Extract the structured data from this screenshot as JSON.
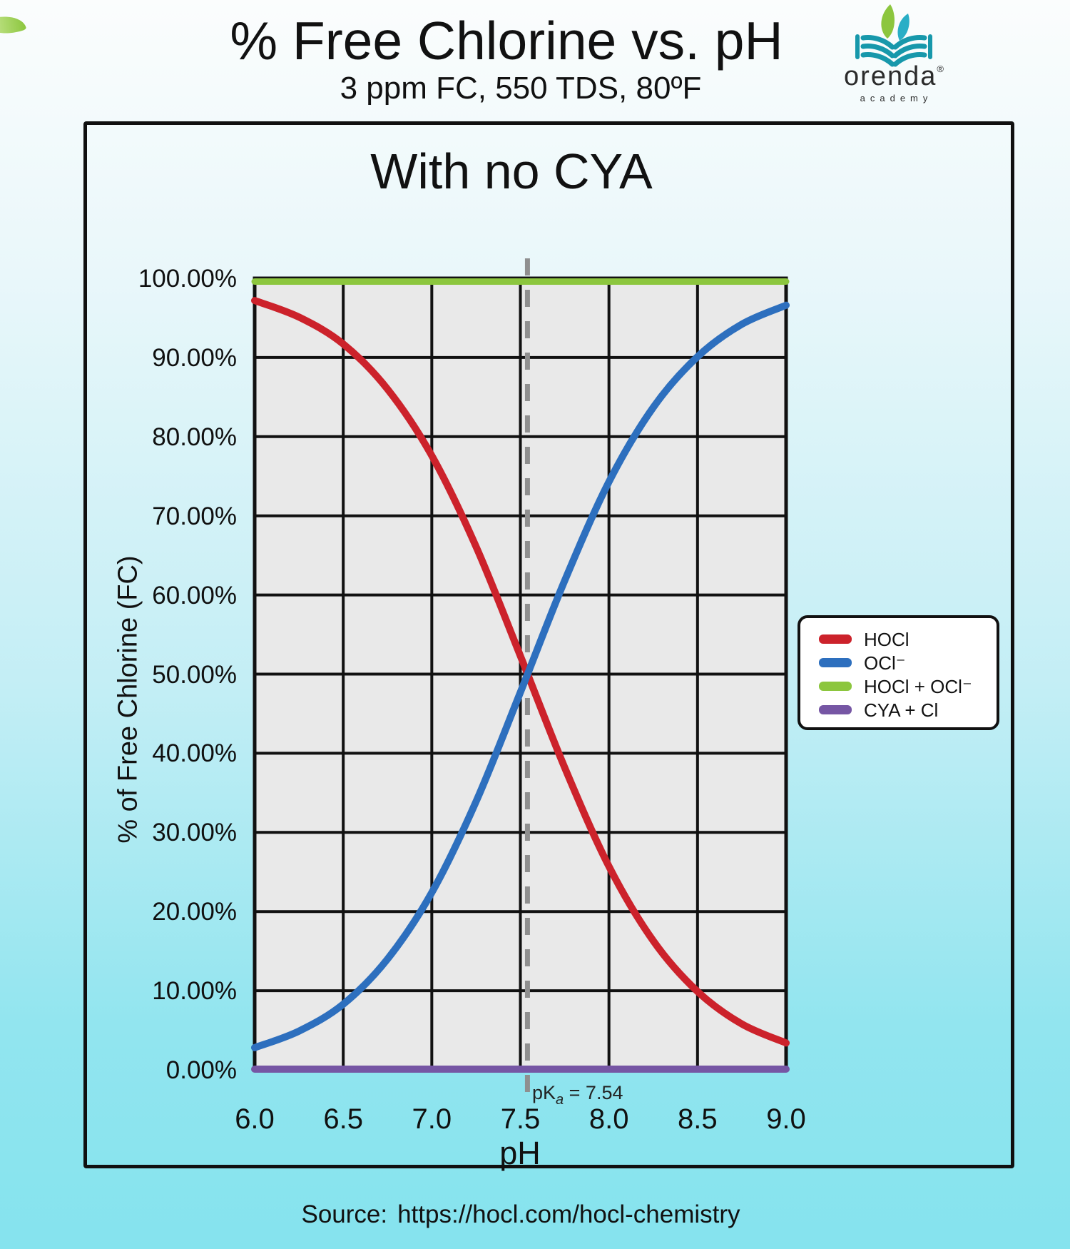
{
  "page": {
    "title": "% Free Chlorine vs. pH",
    "subtitle": "3 ppm FC, 550 TDS, 80ºF",
    "source_label": "Source:",
    "source_url": "https://hocl.com/hocl-chemistry"
  },
  "logo": {
    "name": "orenda",
    "registered": "®",
    "tagline": "academy"
  },
  "chart_data": {
    "type": "line",
    "title": "With no CYA",
    "xlabel": "pH",
    "ylabel": "% of Free Chlorine (FC)",
    "xlim": [
      6.0,
      9.0
    ],
    "ylim": [
      0,
      100
    ],
    "grid": true,
    "legend_position": "right-middle",
    "x_ticks": [
      "6.0",
      "6.5",
      "7.0",
      "7.5",
      "8.0",
      "8.5",
      "9.0"
    ],
    "y_ticks": [
      "100.00%",
      "90.00%",
      "80.00%",
      "70.00%",
      "60.00%",
      "50.00%",
      "40.00%",
      "30.00%",
      "20.00%",
      "10.00%",
      "0.00%"
    ],
    "annotation": {
      "prefix": "pK",
      "subscript": "a",
      "suffix": " = 7.54",
      "x_value": 7.54
    },
    "x": [
      6.0,
      6.25,
      6.5,
      6.75,
      7.0,
      7.25,
      7.5,
      7.75,
      8.0,
      8.25,
      8.5,
      8.75,
      9.0
    ],
    "series": [
      {
        "name": "HOCl",
        "color": "#cc222b",
        "values": [
          97.2,
          95.1,
          91.7,
          86.0,
          77.6,
          66.1,
          52.3,
          38.2,
          25.7,
          16.3,
          9.9,
          5.8,
          3.4
        ]
      },
      {
        "name": "OCl⁻",
        "color": "#2d6fbe",
        "values": [
          2.8,
          4.9,
          8.3,
          14.0,
          22.4,
          33.9,
          47.7,
          61.8,
          74.3,
          83.7,
          90.1,
          94.2,
          96.6
        ]
      },
      {
        "name": "HOCl + OCl⁻",
        "color": "#8cc63e",
        "values": [
          100,
          100,
          100,
          100,
          100,
          100,
          100,
          100,
          100,
          100,
          100,
          100,
          100
        ]
      },
      {
        "name": "CYA + Cl",
        "color": "#7656a4",
        "values": [
          0,
          0,
          0,
          0,
          0,
          0,
          0,
          0,
          0,
          0,
          0,
          0,
          0
        ]
      }
    ],
    "colors": {
      "grid": "#111111",
      "plot_bg": "#e9e9e9",
      "dashed_line": "#8f8f8f"
    }
  }
}
